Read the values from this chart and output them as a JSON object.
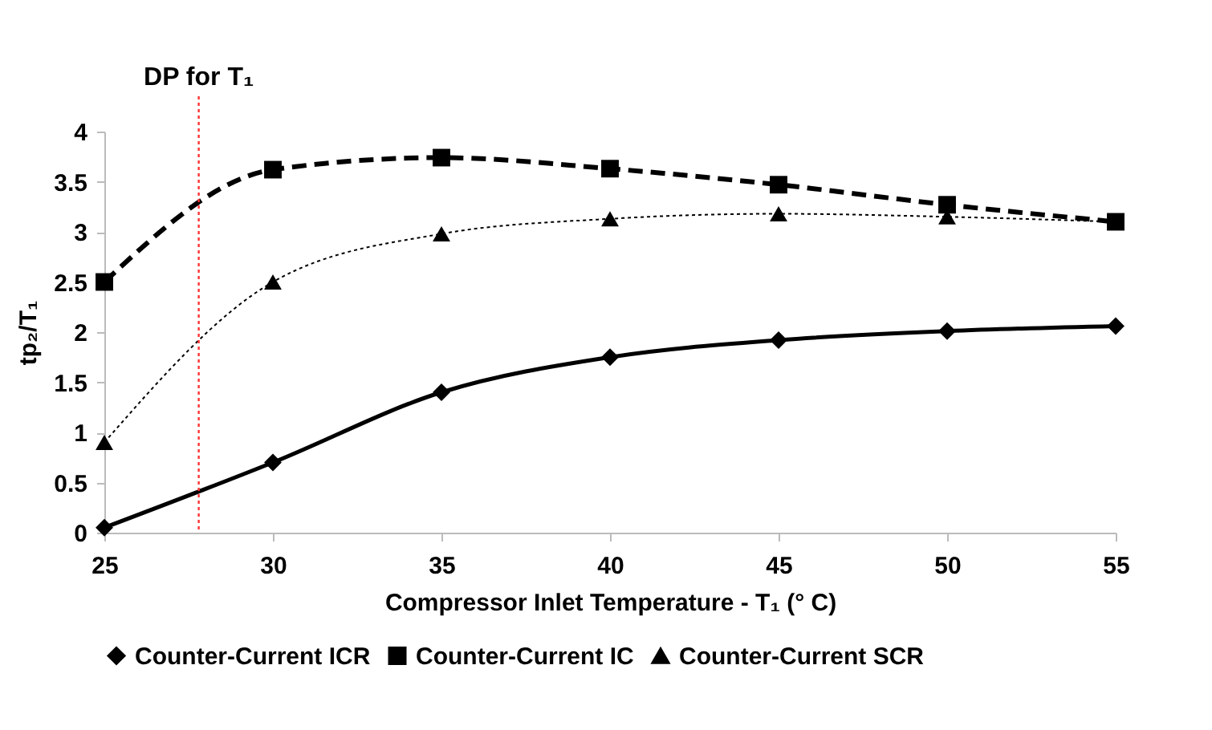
{
  "chart_data": {
    "type": "line",
    "xlabel": "Compressor Inlet Temperature - T₁ (° C)",
    "ylabel": "tp₂/T₁",
    "x": [
      25,
      30,
      35,
      40,
      45,
      50,
      55
    ],
    "xlim": [
      25,
      55
    ],
    "xticks": [
      25,
      30,
      35,
      40,
      45,
      50,
      55
    ],
    "ylim": [
      0,
      4
    ],
    "yticks": [
      0,
      0.5,
      1,
      1.5,
      2,
      2.5,
      3,
      3.5,
      4
    ],
    "grid": false,
    "legend": "bottom",
    "series": [
      {
        "name": "Counter-Current ICR",
        "color": "#000000",
        "marker": "diamond",
        "line_style": "solid",
        "values": [
          0.05,
          0.7,
          1.4,
          1.75,
          1.92,
          2.01,
          2.06
        ]
      },
      {
        "name": "Counter-Current IC",
        "color": "#000000",
        "marker": "square",
        "line_style": "dashed",
        "values": [
          2.5,
          3.62,
          3.74,
          3.63,
          3.47,
          3.27,
          3.1
        ]
      },
      {
        "name": "Counter-Current SCR",
        "color": "#000000",
        "marker": "triangle",
        "line_style": "dotted",
        "values": [
          0.9,
          2.5,
          2.98,
          3.13,
          3.18,
          3.15,
          3.1
        ]
      }
    ],
    "ref_lines": [
      {
        "axis": "x",
        "value": 27.8,
        "label": "DP for T₁",
        "color": "#ff3333",
        "line_style": "dotted"
      }
    ]
  }
}
